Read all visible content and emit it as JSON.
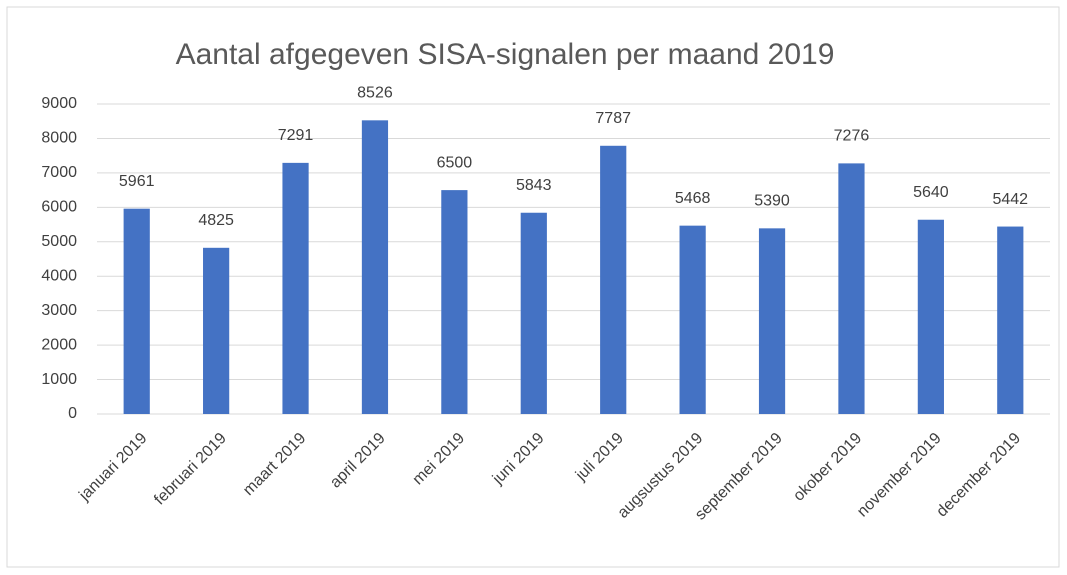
{
  "chart_data": {
    "type": "bar",
    "title": "Aantal afgegeven SISA-signalen per maand 2019",
    "categories": [
      "januari 2019",
      "februari 2019",
      "maart 2019",
      "april 2019",
      "mei 2019",
      "juni 2019",
      "juli 2019",
      "augsustus 2019",
      "september 2019",
      "okober 2019",
      "november 2019",
      "december 2019"
    ],
    "values": [
      5961,
      4825,
      7291,
      8526,
      6500,
      5843,
      7787,
      5468,
      5390,
      7276,
      5640,
      5442
    ],
    "color": "#4472c4",
    "ylim": [
      0,
      9000
    ],
    "yticks": [
      0,
      1000,
      2000,
      3000,
      4000,
      5000,
      6000,
      7000,
      8000,
      9000
    ],
    "grid": true
  }
}
